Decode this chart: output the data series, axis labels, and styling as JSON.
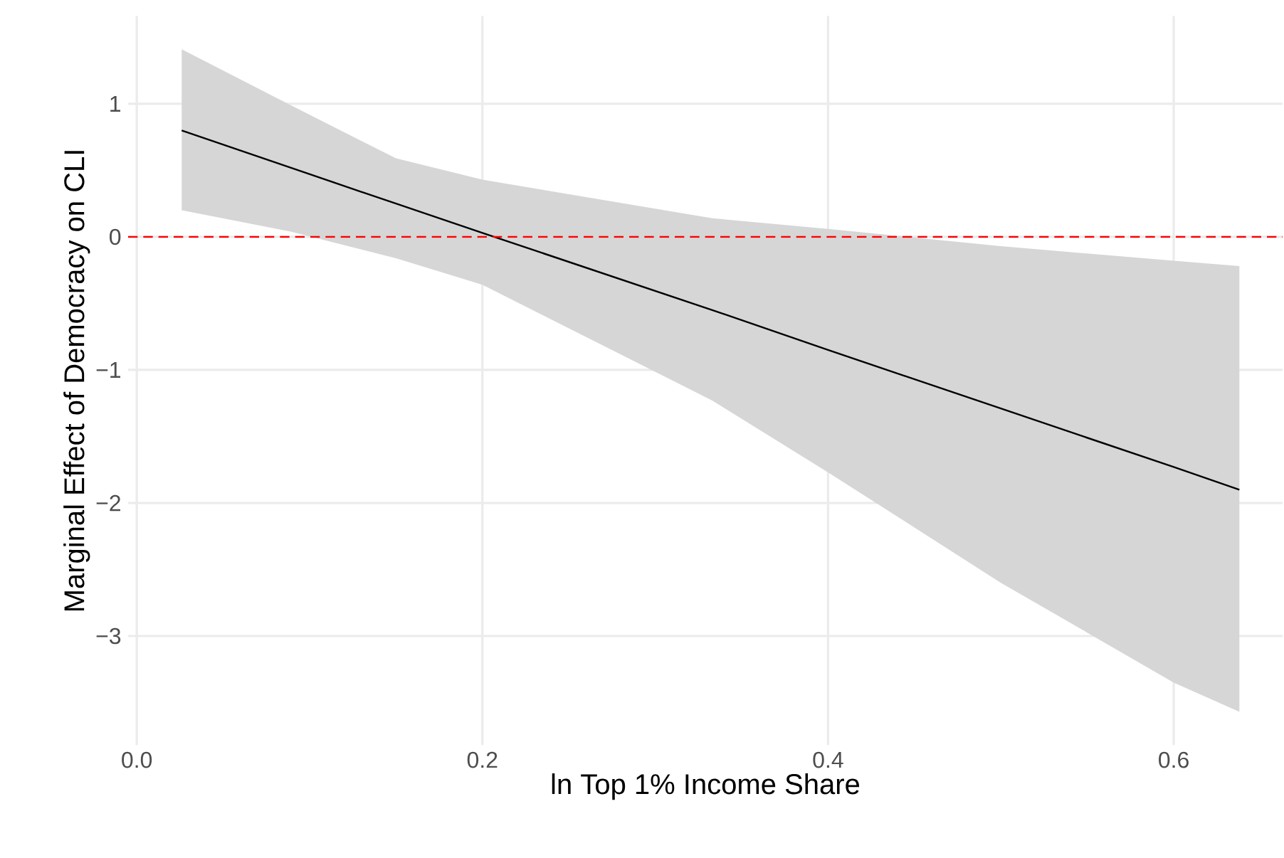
{
  "chart_data": {
    "type": "line",
    "xlabel": "ln Top 1% Income Share",
    "ylabel": "Marginal Effect of Democracy on CLI",
    "series": [
      {
        "color": "#000000",
        "x": [
          0.026,
          0.089,
          0.15,
          0.2,
          0.333,
          0.4,
          0.5,
          0.6,
          0.638
        ],
        "values": [
          0.8,
          0.52,
          0.25,
          0.03,
          -0.55,
          -0.85,
          -1.29,
          -1.73,
          -1.9
        ],
        "lower": [
          0.2,
          0.04,
          -0.16,
          -0.36,
          -1.23,
          -1.77,
          -2.6,
          -3.35,
          -3.57
        ],
        "upper": [
          1.41,
          0.99,
          0.59,
          0.43,
          0.14,
          0.06,
          -0.07,
          -0.18,
          -0.22
        ]
      }
    ],
    "xlim": [
      -0.005,
      0.663
    ],
    "ylim": [
      -3.82,
      1.66
    ],
    "xticks": [
      {
        "value": 0,
        "label": "0.0"
      },
      0.2,
      0.4,
      0.6
    ],
    "yticks": [
      {
        "value": -3,
        "label": "−3"
      },
      {
        "value": -2,
        "label": "−2"
      },
      {
        "value": -1,
        "label": "−1"
      },
      0,
      1
    ],
    "grid": true,
    "ref_lines": [
      {
        "axis": "y",
        "value": 0,
        "color": "#ff0000",
        "line_style": "dashed"
      }
    ]
  }
}
